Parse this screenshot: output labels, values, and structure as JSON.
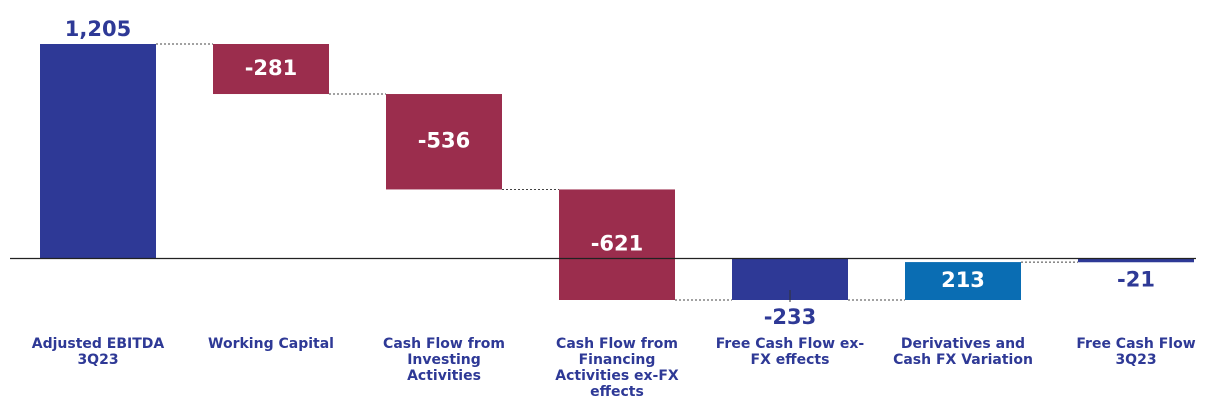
{
  "chart_data": {
    "type": "waterfall",
    "categories": [
      "Adjusted EBITDA 3Q23",
      "Working Capital",
      "Cash Flow from Investing Activities",
      "Cash Flow from Financing Activities ex-FX effects",
      "Free Cash Flow ex-FX effects",
      "Derivatives and Cash FX Variation",
      "Free Cash Flow 3Q23"
    ],
    "values": [
      1205,
      -281,
      -536,
      -621,
      -233,
      213,
      -21
    ],
    "value_labels": [
      "1,205",
      "-281",
      "-536",
      "-621",
      "-233",
      "213",
      "-21"
    ],
    "measure": [
      "absolute",
      "relative",
      "relative",
      "relative",
      "absolute",
      "relative",
      "absolute"
    ],
    "colors": [
      "#2e3996",
      "#9b2d4d",
      "#9b2d4d",
      "#9b2d4d",
      "#2e3996",
      "#0a6db3",
      "#2e3996"
    ],
    "ylim": [
      -233,
      1205
    ]
  }
}
